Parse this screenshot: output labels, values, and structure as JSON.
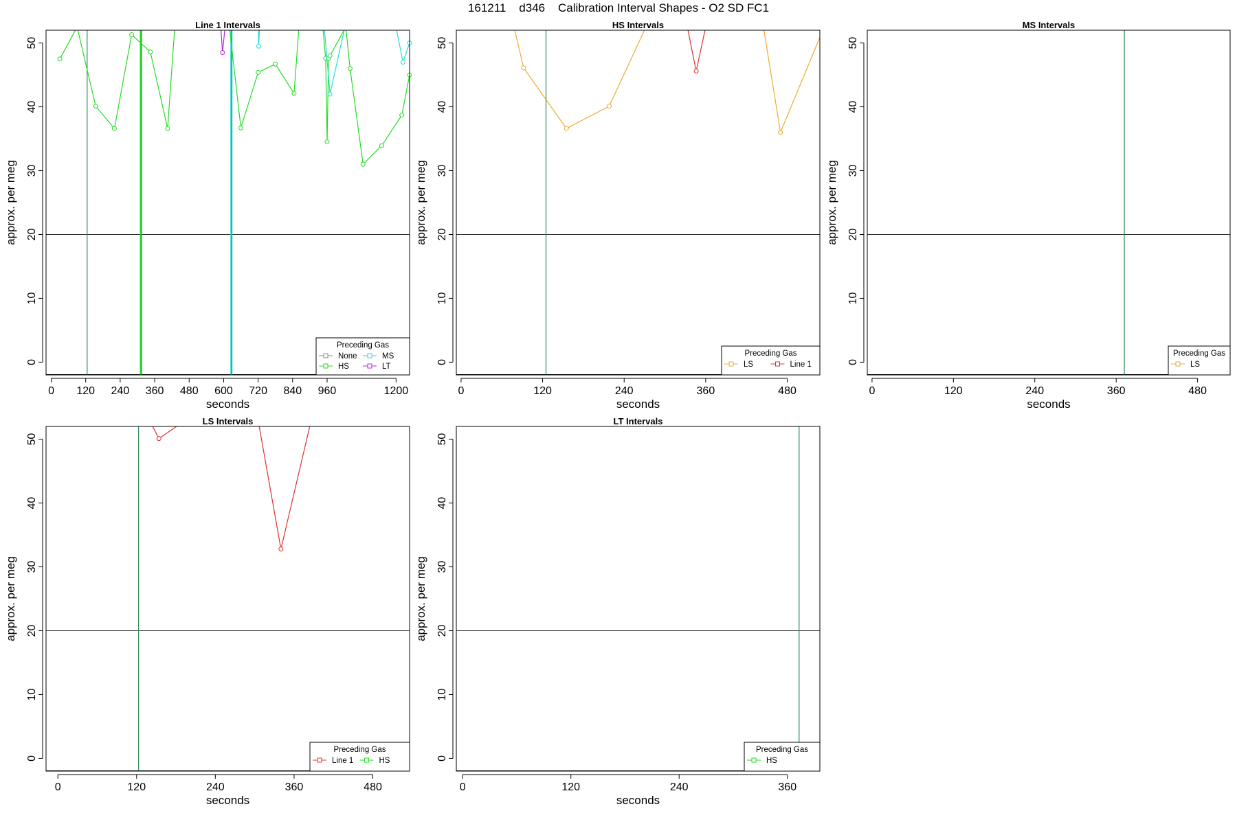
{
  "title": "161211    d346    Calibration Interval Shapes - O2 SD FC1",
  "chart_data": [
    {
      "type": "line",
      "title": "Line 1 Intervals",
      "xlabel": "seconds",
      "ylabel": "approx. per meg",
      "xlim": [
        -18,
        1247
      ],
      "ylim": [
        -2,
        52
      ],
      "xticks": [
        0,
        120,
        240,
        360,
        480,
        600,
        720,
        840,
        960,
        1200
      ],
      "yticks": [
        0,
        10,
        20,
        30,
        40,
        50
      ],
      "hline": 20,
      "legend": {
        "title": "Preceding Gas",
        "position": "bottom-right",
        "columns": 2,
        "entries": [
          "None",
          "MS",
          "HS",
          "LT"
        ]
      },
      "series": [
        {
          "name": "HS",
          "color": "#22dd22",
          "x": [
            30,
            90,
            155,
            220,
            280,
            345,
            405,
            430
          ],
          "y": [
            47.5,
            52.5,
            40.1,
            36.6,
            51.3,
            48.6,
            36.6,
            52.5
          ]
        },
        {
          "name": "HS",
          "color": "#22dd22",
          "x": [
            620,
            660,
            720,
            780,
            845,
            862
          ],
          "y": [
            52.5,
            36.7,
            45.4,
            46.7,
            42.1,
            52.5
          ]
        },
        {
          "name": "HS",
          "color": "#22dd22",
          "x": [
            945,
            955,
            960,
            965,
            970,
            1025,
            1040,
            1085,
            1150,
            1220,
            1247
          ],
          "y": [
            52.5,
            47.6,
            34.5,
            47.6,
            48.0,
            52.5,
            46.0,
            31.0,
            33.9,
            38.7,
            45.0
          ]
        },
        {
          "name": "MS",
          "color": "#22dddd",
          "x": [
            720,
            722,
            725
          ],
          "y": [
            52.5,
            49.5,
            52.5
          ]
        },
        {
          "name": "MS",
          "color": "#22dddd",
          "x": [
            950,
            970,
            1022
          ],
          "y": [
            52.5,
            42.0,
            52.5
          ]
        },
        {
          "name": "MS",
          "color": "#22dddd",
          "x": [
            1200,
            1224,
            1247
          ],
          "y": [
            52.5,
            47.0,
            50.0
          ]
        },
        {
          "name": "LT",
          "color": "#bb22dd",
          "x": [
            590,
            596,
            605
          ],
          "y": [
            52.5,
            48.5,
            52.5
          ]
        }
      ],
      "vlines": [
        {
          "x": 125,
          "color": "#2e8b57",
          "width": 1.2
        },
        {
          "x": 312,
          "color": "#22dd22",
          "width": 3
        },
        {
          "x": 313,
          "color": "#2e8b57",
          "width": 1
        },
        {
          "x": 627,
          "color": "#22dddd",
          "width": 3
        },
        {
          "x": 628,
          "color": "#2e8b57",
          "width": 1
        }
      ]
    },
    {
      "type": "line",
      "title": "HS Intervals",
      "xlabel": "seconds",
      "ylabel": "approx. per meg",
      "xlim": [
        -7,
        528
      ],
      "ylim": [
        -2,
        52
      ],
      "xticks": [
        0,
        120,
        240,
        360,
        480
      ],
      "yticks": [
        0,
        10,
        20,
        30,
        40,
        50
      ],
      "hline": 20,
      "legend": {
        "title": "Preceding Gas",
        "position": "bottom-right",
        "columns": 2,
        "entries": [
          "LS",
          "Line 1"
        ]
      },
      "series": [
        {
          "name": "LS",
          "color": "#f0a830",
          "x": [
            78,
            92,
            155,
            218,
            272
          ],
          "y": [
            52.5,
            46.1,
            36.6,
            40.1,
            52.5
          ]
        },
        {
          "name": "LS",
          "color": "#f0a830",
          "x": [
            445,
            470,
            530
          ],
          "y": [
            52.5,
            36.0,
            51.4
          ]
        },
        {
          "name": "Line 1",
          "color": "#e03030",
          "x": [
            333,
            346,
            360
          ],
          "y": [
            52.5,
            45.6,
            52.5
          ]
        }
      ],
      "vlines": [
        {
          "x": 125,
          "color": "#2e8b57",
          "width": 1.2
        }
      ]
    },
    {
      "type": "line",
      "title": "MS Intervals",
      "xlabel": "seconds",
      "ylabel": "approx. per meg",
      "xlim": [
        -7,
        528
      ],
      "ylim": [
        -2,
        52
      ],
      "xticks": [
        0,
        120,
        240,
        360,
        480
      ],
      "yticks": [
        0,
        10,
        20,
        30,
        40,
        50
      ],
      "hline": 20,
      "legend": {
        "title": "Preceding Gas",
        "position": "bottom-right",
        "columns": 1,
        "entries": [
          "LS"
        ]
      },
      "series": [],
      "vlines": [
        {
          "x": 372,
          "color": "#2e8b57",
          "width": 1.2
        }
      ]
    },
    {
      "type": "line",
      "title": "LS Intervals",
      "xlabel": "seconds",
      "ylabel": "approx. per meg",
      "xlim": [
        -18,
        536
      ],
      "ylim": [
        -2,
        52
      ],
      "xticks": [
        0,
        120,
        240,
        360,
        480
      ],
      "yticks": [
        0,
        10,
        20,
        30,
        40,
        50
      ],
      "hline": 20,
      "legend": {
        "title": "Preceding Gas",
        "position": "bottom-right",
        "columns": 2,
        "entries": [
          "Line 1",
          "HS"
        ]
      },
      "series": [
        {
          "name": "Line 1",
          "color": "#e03030",
          "x": [
            142,
            154,
            188
          ],
          "y": [
            52.5,
            50.1,
            52.5
          ]
        },
        {
          "name": "Line 1",
          "color": "#e03030",
          "x": [
            306,
            340,
            385
          ],
          "y": [
            52.5,
            32.8,
            52.5
          ]
        }
      ],
      "vlines": [
        {
          "x": 123,
          "color": "#2e8b57",
          "width": 1.2
        }
      ]
    },
    {
      "type": "line",
      "title": "LT Intervals",
      "xlabel": "seconds",
      "ylabel": "approx. per meg",
      "xlim": [
        -7,
        396
      ],
      "ylim": [
        -2,
        52
      ],
      "xticks": [
        0,
        120,
        240,
        360
      ],
      "yticks": [
        0,
        10,
        20,
        30,
        40,
        50
      ],
      "hline": 20,
      "legend": {
        "title": "Preceding Gas",
        "position": "bottom-right",
        "columns": 1,
        "entries": [
          "HS"
        ]
      },
      "series": [],
      "vlines": [
        {
          "x": 373,
          "color": "#2e8b57",
          "width": 1.2
        }
      ]
    }
  ],
  "legend_colors": {
    "None": "#888888",
    "MS": "#22dddd",
    "HS": "#22dd22",
    "LT": "#bb22dd",
    "LS": "#f0a830",
    "Line 1": "#e03030"
  }
}
